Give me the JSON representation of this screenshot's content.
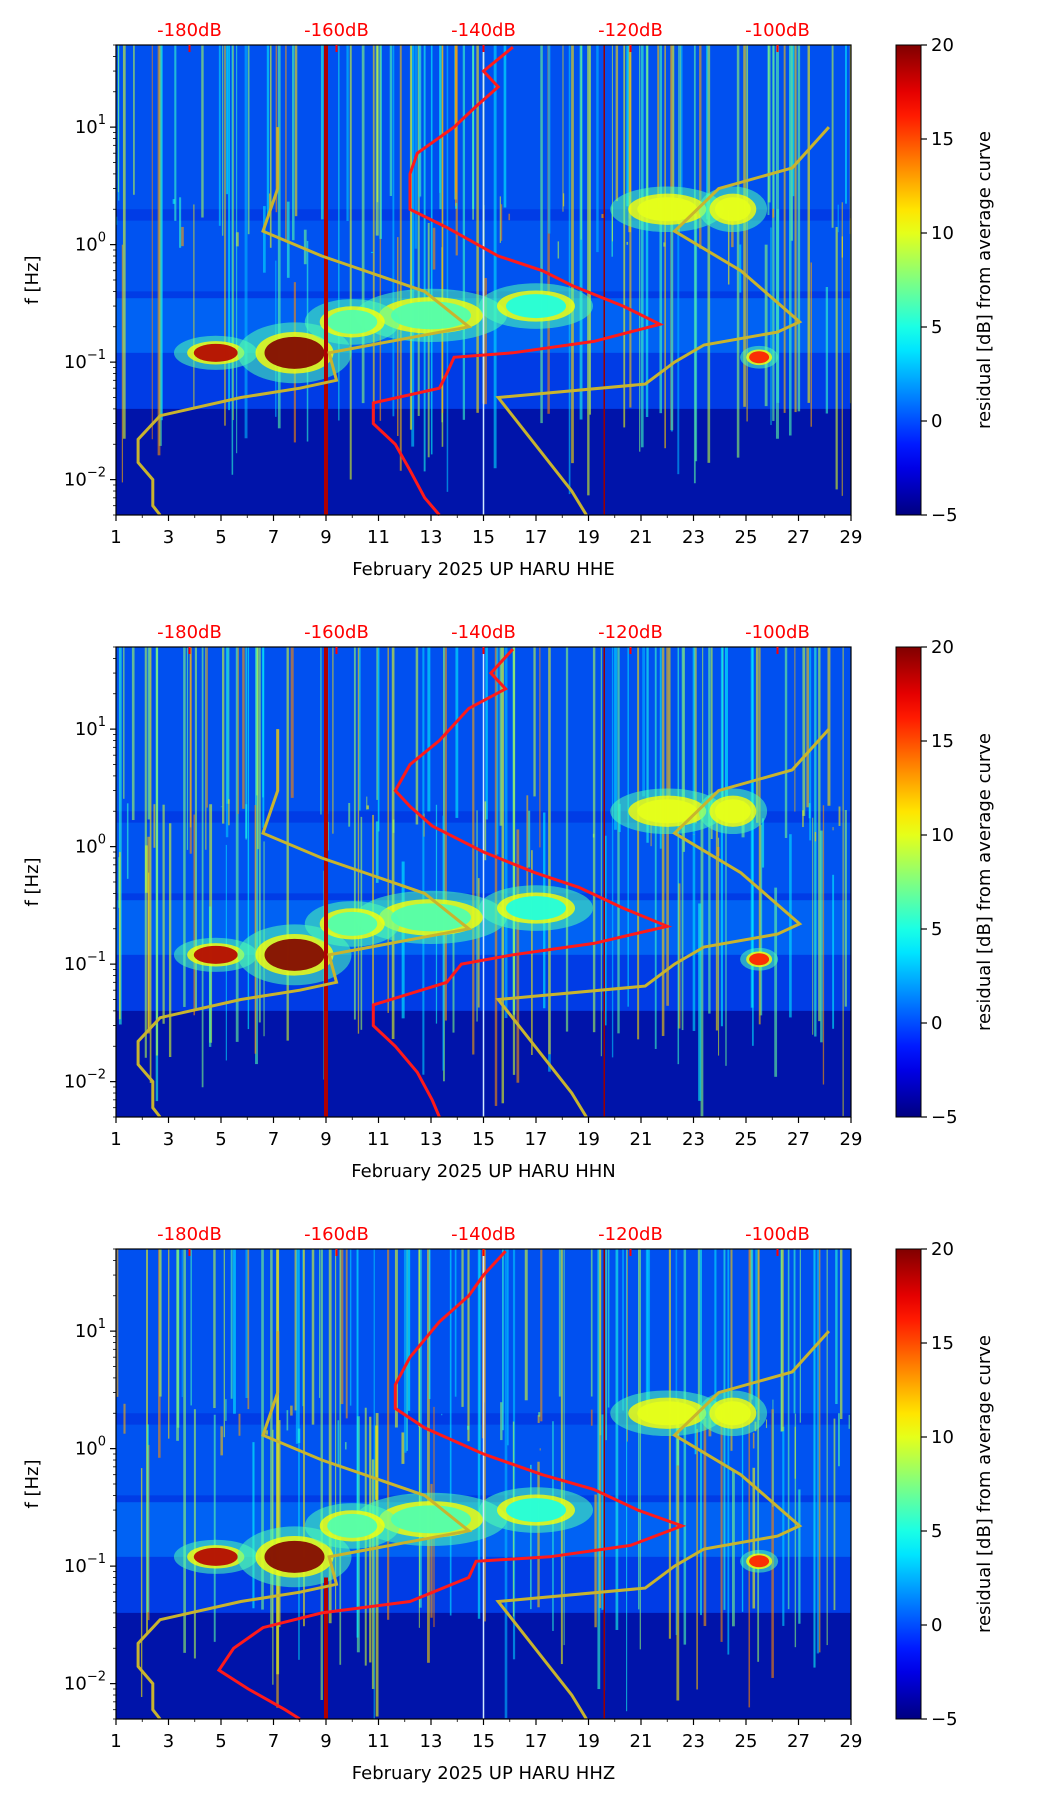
{
  "chart_data": [
    {
      "type": "heatmap",
      "channel": "HHE",
      "xlabel": "February 2025 UP HARU  HHE",
      "ylabel": "f [Hz]",
      "xlim": [
        1,
        29
      ],
      "xticks": [
        "1",
        "3",
        "5",
        "7",
        "9",
        "11",
        "13",
        "15",
        "17",
        "19",
        "21",
        "23",
        "25",
        "27",
        "29"
      ],
      "ylim_hz": [
        0.005,
        50
      ],
      "yticks": [
        {
          "label": "10",
          "exp": "−2",
          "value": 0.01
        },
        {
          "label": "10",
          "exp": "−1",
          "value": 0.1
        },
        {
          "label": "10",
          "exp": "0",
          "value": 1
        },
        {
          "label": "10",
          "exp": "1",
          "value": 10
        }
      ],
      "top_axis_labels": [
        "-180dB",
        "-160dB",
        "-140dB",
        "-120dB",
        "-100dB"
      ],
      "top_axis_db": [
        -180,
        -160,
        -140,
        -120,
        -100
      ],
      "top_axis_range_db": [
        -190,
        -90
      ],
      "colorbar": {
        "label": "residual [dB] from average curve",
        "min": -5,
        "max": 20,
        "ticks": [
          "20",
          "15",
          "10",
          "5",
          "0",
          "−5"
        ],
        "tick_values": [
          20,
          15,
          10,
          5,
          0,
          -5
        ]
      },
      "series": [
        {
          "name": "yellow-model-left",
          "color": "#c8b42e",
          "points": [
            [
              -168,
              10
            ],
            [
              -168,
              3
            ],
            [
              -170,
              1.3
            ],
            [
              -162,
              0.8
            ],
            [
              -148,
              0.4
            ],
            [
              -142,
              0.2
            ],
            [
              -161,
              0.12
            ],
            [
              -160,
              0.07
            ],
            [
              -165,
              0.06
            ],
            [
              -173,
              0.05
            ],
            [
              -184,
              0.035
            ],
            [
              -187,
              0.022
            ],
            [
              -187,
              0.014
            ],
            [
              -185,
              0.01
            ],
            [
              -185,
              0.006
            ],
            [
              -184,
              0.005
            ]
          ]
        },
        {
          "name": "yellow-model-right",
          "color": "#c8b42e",
          "points": [
            [
              -93,
              10
            ],
            [
              -98,
              4.5
            ],
            [
              -108,
              3
            ],
            [
              -114,
              1.3
            ],
            [
              -105,
              0.6
            ],
            [
              -97,
              0.22
            ],
            [
              -100,
              0.18
            ],
            [
              -110,
              0.14
            ],
            [
              -114,
              0.1
            ],
            [
              -118,
              0.065
            ],
            [
              -138,
              0.05
            ],
            [
              -128,
              0.008
            ],
            [
              -126,
              0.005
            ]
          ]
        },
        {
          "name": "red-average-curve",
          "color": "#ff1a1a",
          "points": [
            [
              -136,
              48
            ],
            [
              -140,
              30
            ],
            [
              -138,
              22
            ],
            [
              -141,
              15
            ],
            [
              -144,
              10
            ],
            [
              -149,
              6
            ],
            [
              -150,
              4
            ],
            [
              -150,
              3
            ],
            [
              -150,
              2
            ],
            [
              -145,
              1.4
            ],
            [
              -138,
              0.8
            ],
            [
              -132,
              0.6
            ],
            [
              -128,
              0.45
            ],
            [
              -121,
              0.3
            ],
            [
              -116,
              0.21
            ],
            [
              -125,
              0.15
            ],
            [
              -136,
              0.12
            ],
            [
              -144,
              0.11
            ],
            [
              -145,
              0.08
            ],
            [
              -146,
              0.06
            ],
            [
              -155,
              0.045
            ],
            [
              -155,
              0.03
            ],
            [
              -152,
              0.02
            ],
            [
              -150,
              0.012
            ],
            [
              -148,
              0.007
            ],
            [
              -146,
              0.005
            ]
          ]
        }
      ]
    },
    {
      "type": "heatmap",
      "channel": "HHN",
      "xlabel": "February 2025 UP HARU  HHN",
      "ylabel": "f [Hz]",
      "xlim": [
        1,
        29
      ],
      "xticks": [
        "1",
        "3",
        "5",
        "7",
        "9",
        "11",
        "13",
        "15",
        "17",
        "19",
        "21",
        "23",
        "25",
        "27",
        "29"
      ],
      "ylim_hz": [
        0.005,
        50
      ],
      "yticks": [
        {
          "label": "10",
          "exp": "−2",
          "value": 0.01
        },
        {
          "label": "10",
          "exp": "−1",
          "value": 0.1
        },
        {
          "label": "10",
          "exp": "0",
          "value": 1
        },
        {
          "label": "10",
          "exp": "1",
          "value": 10
        }
      ],
      "top_axis_labels": [
        "-180dB",
        "-160dB",
        "-140dB",
        "-120dB",
        "-100dB"
      ],
      "top_axis_db": [
        -180,
        -160,
        -140,
        -120,
        -100
      ],
      "top_axis_range_db": [
        -190,
        -90
      ],
      "colorbar": {
        "label": "residual [dB] from average curve",
        "min": -5,
        "max": 20,
        "ticks": [
          "20",
          "15",
          "10",
          "5",
          "0",
          "−5"
        ],
        "tick_values": [
          20,
          15,
          10,
          5,
          0,
          -5
        ]
      },
      "series": [
        {
          "name": "yellow-model-left",
          "color": "#c8b42e",
          "points": [
            [
              -168,
              10
            ],
            [
              -168,
              3
            ],
            [
              -170,
              1.3
            ],
            [
              -162,
              0.8
            ],
            [
              -148,
              0.4
            ],
            [
              -142,
              0.2
            ],
            [
              -161,
              0.12
            ],
            [
              -160,
              0.07
            ],
            [
              -165,
              0.06
            ],
            [
              -173,
              0.05
            ],
            [
              -184,
              0.035
            ],
            [
              -187,
              0.022
            ],
            [
              -187,
              0.014
            ],
            [
              -185,
              0.01
            ],
            [
              -185,
              0.006
            ],
            [
              -184,
              0.005
            ]
          ]
        },
        {
          "name": "yellow-model-right",
          "color": "#c8b42e",
          "points": [
            [
              -93,
              10
            ],
            [
              -98,
              4.5
            ],
            [
              -108,
              3
            ],
            [
              -114,
              1.3
            ],
            [
              -105,
              0.6
            ],
            [
              -97,
              0.22
            ],
            [
              -100,
              0.18
            ],
            [
              -110,
              0.14
            ],
            [
              -114,
              0.1
            ],
            [
              -118,
              0.065
            ],
            [
              -138,
              0.05
            ],
            [
              -128,
              0.008
            ],
            [
              -126,
              0.005
            ]
          ]
        },
        {
          "name": "red-average-curve",
          "color": "#ff1a1a",
          "points": [
            [
              -136,
              48
            ],
            [
              -139,
              30
            ],
            [
              -137,
              22
            ],
            [
              -142,
              15
            ],
            [
              -146,
              8
            ],
            [
              -150,
              5
            ],
            [
              -152,
              3
            ],
            [
              -150,
              2.2
            ],
            [
              -147,
              1.5
            ],
            [
              -140,
              0.9
            ],
            [
              -133,
              0.6
            ],
            [
              -127,
              0.45
            ],
            [
              -121,
              0.3
            ],
            [
              -115,
              0.21
            ],
            [
              -125,
              0.15
            ],
            [
              -136,
              0.12
            ],
            [
              -143,
              0.1
            ],
            [
              -145,
              0.07
            ],
            [
              -155,
              0.045
            ],
            [
              -155,
              0.03
            ],
            [
              -152,
              0.02
            ],
            [
              -149,
              0.012
            ],
            [
              -147,
              0.007
            ],
            [
              -146,
              0.005
            ]
          ]
        }
      ]
    },
    {
      "type": "heatmap",
      "channel": "HHZ",
      "xlabel": "February 2025 UP HARU  HHZ",
      "ylabel": "f [Hz]",
      "xlim": [
        1,
        29
      ],
      "xticks": [
        "1",
        "3",
        "5",
        "7",
        "9",
        "11",
        "13",
        "15",
        "17",
        "19",
        "21",
        "23",
        "25",
        "27",
        "29"
      ],
      "ylim_hz": [
        0.005,
        50
      ],
      "yticks": [
        {
          "label": "10",
          "exp": "−2",
          "value": 0.01
        },
        {
          "label": "10",
          "exp": "−1",
          "value": 0.1
        },
        {
          "label": "10",
          "exp": "0",
          "value": 1
        },
        {
          "label": "10",
          "exp": "1",
          "value": 10
        }
      ],
      "top_axis_labels": [
        "-180dB",
        "-160dB",
        "-140dB",
        "-120dB",
        "-100dB"
      ],
      "top_axis_db": [
        -180,
        -160,
        -140,
        -120,
        -100
      ],
      "top_axis_range_db": [
        -190,
        -90
      ],
      "colorbar": {
        "label": "residual [dB] from average curve",
        "min": -5,
        "max": 20,
        "ticks": [
          "20",
          "15",
          "10",
          "5",
          "0",
          "−5"
        ],
        "tick_values": [
          20,
          15,
          10,
          5,
          0,
          -5
        ]
      },
      "series": [
        {
          "name": "yellow-model-left",
          "color": "#c8b42e",
          "points": [
            [
              -168,
              10
            ],
            [
              -168,
              3
            ],
            [
              -170,
              1.3
            ],
            [
              -162,
              0.8
            ],
            [
              -148,
              0.4
            ],
            [
              -142,
              0.2
            ],
            [
              -161,
              0.12
            ],
            [
              -160,
              0.07
            ],
            [
              -165,
              0.06
            ],
            [
              -173,
              0.05
            ],
            [
              -184,
              0.035
            ],
            [
              -187,
              0.022
            ],
            [
              -187,
              0.014
            ],
            [
              -185,
              0.01
            ],
            [
              -185,
              0.006
            ],
            [
              -184,
              0.005
            ]
          ]
        },
        {
          "name": "yellow-model-right",
          "color": "#c8b42e",
          "points": [
            [
              -93,
              10
            ],
            [
              -98,
              4.5
            ],
            [
              -108,
              3
            ],
            [
              -114,
              1.3
            ],
            [
              -105,
              0.6
            ],
            [
              -97,
              0.22
            ],
            [
              -100,
              0.18
            ],
            [
              -110,
              0.14
            ],
            [
              -114,
              0.1
            ],
            [
              -118,
              0.065
            ],
            [
              -138,
              0.05
            ],
            [
              -128,
              0.008
            ],
            [
              -126,
              0.005
            ]
          ]
        },
        {
          "name": "red-average-curve",
          "color": "#ff1a1a",
          "points": [
            [
              -137,
              48
            ],
            [
              -140,
              30
            ],
            [
              -142,
              20
            ],
            [
              -146,
              12
            ],
            [
              -150,
              6
            ],
            [
              -152,
              3.5
            ],
            [
              -152,
              2.2
            ],
            [
              -148,
              1.5
            ],
            [
              -140,
              0.9
            ],
            [
              -132,
              0.6
            ],
            [
              -125,
              0.45
            ],
            [
              -119,
              0.3
            ],
            [
              -113,
              0.22
            ],
            [
              -120,
              0.15
            ],
            [
              -131,
              0.12
            ],
            [
              -141,
              0.11
            ],
            [
              -142,
              0.08
            ],
            [
              -150,
              0.05
            ],
            [
              -162,
              0.04
            ],
            [
              -170,
              0.03
            ],
            [
              -174,
              0.02
            ],
            [
              -176,
              0.013
            ],
            [
              -172,
              0.009
            ],
            [
              -167,
              0.006
            ],
            [
              -165,
              0.005
            ]
          ]
        }
      ]
    }
  ]
}
